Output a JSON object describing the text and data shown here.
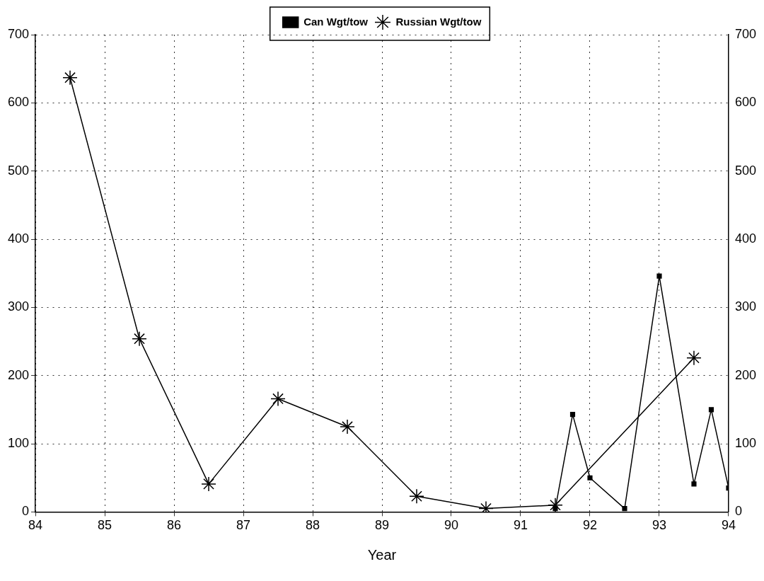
{
  "chart_data": {
    "type": "line",
    "xlabel": "Year",
    "xlim": [
      84,
      94
    ],
    "xticks": [
      84,
      85,
      86,
      87,
      88,
      89,
      90,
      91,
      92,
      93,
      94
    ],
    "ylim": [
      0,
      700
    ],
    "yticks": [
      0,
      100,
      200,
      300,
      400,
      500,
      600,
      700
    ],
    "y2lim": [
      0,
      700
    ],
    "y2ticks": [
      0,
      100,
      200,
      300,
      400,
      500,
      600,
      700
    ],
    "grid": true,
    "legend": "top",
    "line_style": "solid",
    "series": [
      {
        "name": "Can Wgt/tow",
        "color": "#000000",
        "marker": "square",
        "x": [
          91.5,
          91.75,
          92,
          92.5,
          93,
          93.5,
          93.75,
          94
        ],
        "values": [
          5,
          143,
          50,
          5,
          346,
          41,
          150,
          35
        ]
      },
      {
        "name": "Russian Wgt/tow",
        "color": "#000000",
        "marker": "cross",
        "x": [
          84.5,
          85.5,
          86.5,
          87.5,
          88.5,
          89.5,
          90.5,
          91.5,
          93.5
        ],
        "values": [
          637,
          254,
          41,
          166,
          125,
          23,
          5,
          10,
          226
        ]
      }
    ]
  }
}
